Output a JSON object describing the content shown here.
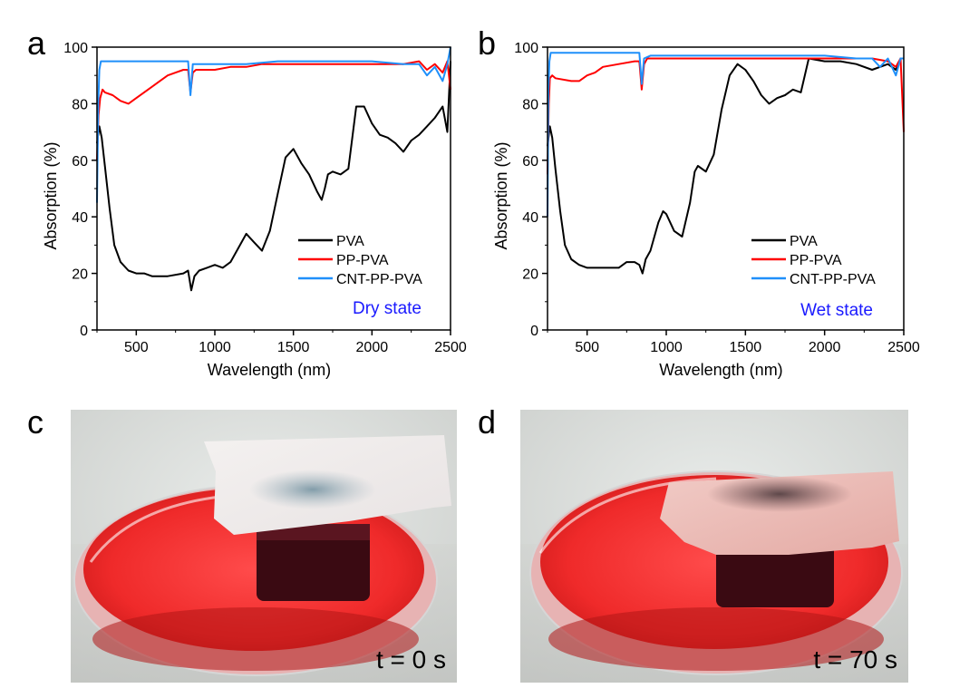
{
  "chart_data": [
    {
      "panel": "a",
      "type": "line",
      "xlabel": "Wavelength (nm)",
      "ylabel": "Absorption (%)",
      "xlim": [
        250,
        2500
      ],
      "ylim": [
        0,
        100
      ],
      "xticks": [
        500,
        1000,
        1500,
        2000,
        2500
      ],
      "yticks": [
        0,
        20,
        40,
        60,
        80,
        100
      ],
      "legend_position": "bottom-right",
      "annotation": "Dry state",
      "grid": false,
      "series": [
        {
          "name": "PVA",
          "color": "#000000",
          "x": [
            250,
            265,
            280,
            300,
            330,
            360,
            400,
            450,
            500,
            550,
            600,
            700,
            800,
            830,
            850,
            870,
            900,
            950,
            1000,
            1050,
            1100,
            1150,
            1200,
            1250,
            1300,
            1350,
            1400,
            1450,
            1500,
            1550,
            1600,
            1650,
            1680,
            1700,
            1720,
            1750,
            1800,
            1850,
            1900,
            1950,
            2000,
            2050,
            2100,
            2150,
            2200,
            2250,
            2300,
            2350,
            2400,
            2450,
            2480,
            2500
          ],
          "y": [
            66,
            72,
            68,
            58,
            43,
            30,
            24,
            21,
            20,
            20,
            19,
            19,
            20,
            21,
            14,
            19,
            21,
            22,
            23,
            22,
            24,
            29,
            34,
            31,
            28,
            35,
            48,
            61,
            64,
            59,
            55,
            49,
            46,
            50,
            55,
            56,
            55,
            57,
            79,
            79,
            73,
            69,
            68,
            66,
            63,
            67,
            69,
            72,
            75,
            79,
            70,
            95
          ]
        },
        {
          "name": "PP-PVA",
          "color": "#ff0000",
          "x": [
            250,
            260,
            270,
            285,
            300,
            350,
            400,
            450,
            500,
            550,
            600,
            650,
            700,
            750,
            800,
            830,
            845,
            860,
            880,
            920,
            1000,
            1100,
            1200,
            1300,
            1500,
            1700,
            1900,
            2100,
            2200,
            2300,
            2350,
            2400,
            2450,
            2480,
            2500
          ],
          "y": [
            60,
            76,
            82,
            85,
            84,
            83,
            81,
            80,
            82,
            84,
            86,
            88,
            90,
            91,
            92,
            92,
            84,
            91,
            92,
            92,
            92,
            93,
            93,
            94,
            94,
            94,
            94,
            94,
            94,
            95,
            92,
            94,
            91,
            95,
            85
          ]
        },
        {
          "name": "CNT-PP-PVA",
          "color": "#1f8ffa",
          "x": [
            250,
            258,
            265,
            275,
            290,
            320,
            400,
            500,
            600,
            700,
            800,
            830,
            845,
            860,
            900,
            1000,
            1200,
            1400,
            1600,
            1800,
            2000,
            2200,
            2300,
            2350,
            2400,
            2450,
            2480,
            2500
          ],
          "y": [
            45,
            80,
            92,
            95,
            95,
            95,
            95,
            95,
            95,
            95,
            95,
            95,
            83,
            94,
            94,
            94,
            94,
            95,
            95,
            95,
            95,
            94,
            94,
            90,
            93,
            88,
            94,
            100
          ]
        }
      ]
    },
    {
      "panel": "b",
      "type": "line",
      "xlabel": "Wavelength (nm)",
      "ylabel": "Absorption (%)",
      "xlim": [
        250,
        2500
      ],
      "ylim": [
        0,
        100
      ],
      "xticks": [
        500,
        1000,
        1500,
        2000,
        2500
      ],
      "yticks": [
        0,
        20,
        40,
        60,
        80,
        100
      ],
      "legend_position": "bottom-right",
      "annotation": "Wet state",
      "grid": false,
      "series": [
        {
          "name": "PVA",
          "color": "#000000",
          "x": [
            250,
            265,
            280,
            300,
            330,
            360,
            400,
            450,
            500,
            550,
            600,
            700,
            750,
            800,
            830,
            850,
            870,
            900,
            950,
            980,
            1000,
            1050,
            1100,
            1150,
            1180,
            1200,
            1250,
            1300,
            1350,
            1400,
            1450,
            1500,
            1550,
            1600,
            1650,
            1700,
            1750,
            1800,
            1850,
            1900,
            2000,
            2100,
            2200,
            2300,
            2400,
            2450,
            2480,
            2500
          ],
          "y": [
            65,
            72,
            68,
            57,
            42,
            30,
            25,
            23,
            22,
            22,
            22,
            22,
            24,
            24,
            23,
            20,
            25,
            28,
            38,
            42,
            41,
            35,
            33,
            45,
            56,
            58,
            56,
            62,
            78,
            90,
            94,
            92,
            88,
            83,
            80,
            82,
            83,
            85,
            84,
            96,
            95,
            95,
            94,
            92,
            94,
            92,
            96,
            96
          ]
        },
        {
          "name": "PP-PVA",
          "color": "#ff0000",
          "x": [
            250,
            258,
            265,
            280,
            300,
            400,
            450,
            500,
            550,
            600,
            700,
            800,
            830,
            845,
            860,
            880,
            950,
            1100,
            1300,
            1500,
            1700,
            1900,
            2100,
            2300,
            2400,
            2450,
            2480,
            2500
          ],
          "y": [
            55,
            80,
            89,
            90,
            89,
            88,
            88,
            90,
            91,
            93,
            94,
            95,
            95,
            85,
            94,
            96,
            96,
            96,
            96,
            96,
            96,
            96,
            96,
            96,
            95,
            93,
            96,
            70
          ]
        },
        {
          "name": "CNT-PP-PVA",
          "color": "#1f8ffa",
          "x": [
            250,
            256,
            262,
            270,
            290,
            320,
            400,
            500,
            600,
            700,
            800,
            830,
            845,
            860,
            900,
            1000,
            1200,
            1400,
            1600,
            1800,
            2000,
            2200,
            2300,
            2350,
            2400,
            2450,
            2480,
            2500
          ],
          "y": [
            40,
            85,
            95,
            98,
            98,
            98,
            98,
            98,
            98,
            98,
            98,
            98,
            87,
            96,
            97,
            97,
            97,
            97,
            97,
            97,
            97,
            96,
            96,
            93,
            96,
            90,
            96,
            96
          ]
        }
      ]
    }
  ],
  "photos": [
    {
      "panel": "c",
      "caption": "t = 0 s"
    },
    {
      "panel": "d",
      "caption": "t = 70 s"
    }
  ]
}
